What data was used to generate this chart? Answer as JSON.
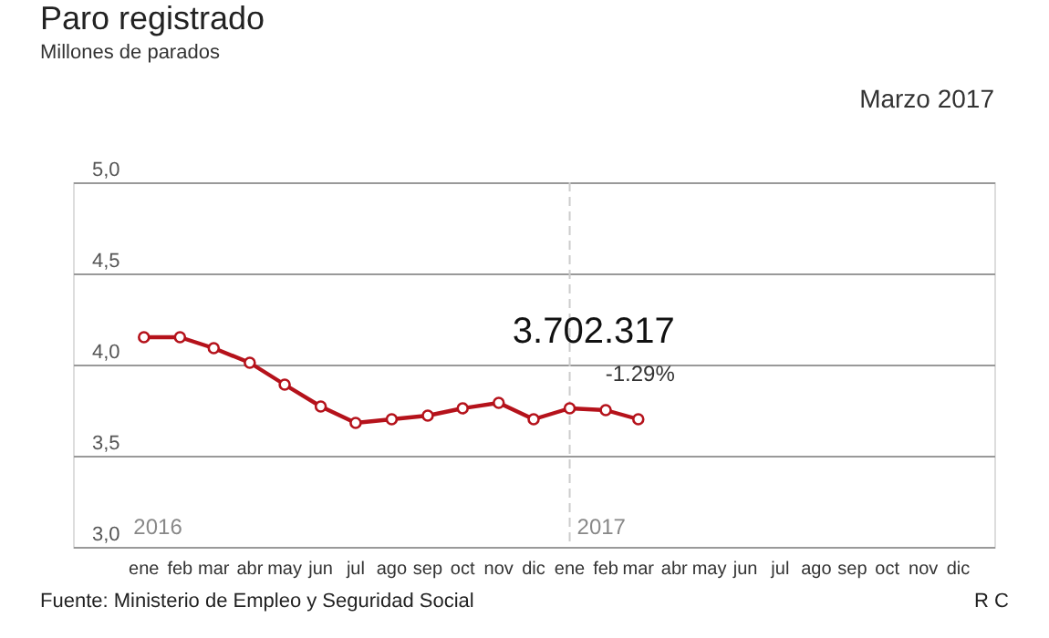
{
  "chart_data": {
    "type": "line",
    "title": "Paro registrado",
    "subtitle": "Millones de parados",
    "x": [
      "2016-01",
      "2016-02",
      "2016-03",
      "2016-04",
      "2016-05",
      "2016-06",
      "2016-07",
      "2016-08",
      "2016-09",
      "2016-10",
      "2016-11",
      "2016-12",
      "2017-01",
      "2017-02",
      "2017-03"
    ],
    "series": [
      {
        "color": "#b5121b",
        "values": [
          4.15,
          4.15,
          4.09,
          4.01,
          3.89,
          3.77,
          3.68,
          3.7,
          3.72,
          3.76,
          3.79,
          3.7,
          3.76,
          3.75,
          3.7
        ]
      }
    ],
    "xlim": [
      "2015-11-01",
      "2018-01-01"
    ],
    "xticks": [
      {
        "value": "2016-01",
        "label": "ene"
      },
      {
        "value": "2016-02",
        "label": "feb"
      },
      {
        "value": "2016-03",
        "label": "mar"
      },
      {
        "value": "2016-04",
        "label": "abr"
      },
      {
        "value": "2016-05",
        "label": "may"
      },
      {
        "value": "2016-06",
        "label": "jun"
      },
      {
        "value": "2016-07",
        "label": "jul"
      },
      {
        "value": "2016-08",
        "label": "ago"
      },
      {
        "value": "2016-09",
        "label": "sep"
      },
      {
        "value": "2016-10",
        "label": "oct"
      },
      {
        "value": "2016-11",
        "label": "nov"
      },
      {
        "value": "2016-12",
        "label": "dic"
      },
      {
        "value": "2017-01",
        "label": "ene"
      },
      {
        "value": "2017-02",
        "label": "feb"
      },
      {
        "value": "2017-03",
        "label": "mar"
      },
      {
        "value": "2017-04",
        "label": "abr"
      },
      {
        "value": "2017-05",
        "label": "may"
      },
      {
        "value": "2017-06",
        "label": "jun"
      },
      {
        "value": "2017-07",
        "label": "jul"
      },
      {
        "value": "2017-08",
        "label": "ago"
      },
      {
        "value": "2017-09",
        "label": "sep"
      },
      {
        "value": "2017-10",
        "label": "oct"
      },
      {
        "value": "2017-11",
        "label": "nov"
      },
      {
        "value": "2017-12",
        "label": "dic"
      }
    ],
    "ylim": [
      3.0,
      5.0
    ],
    "yticks": [
      {
        "value": 3.0,
        "label": "3,0"
      },
      {
        "value": 3.5,
        "label": "3,5"
      },
      {
        "value": 4.0,
        "label": "4,0"
      },
      {
        "value": 4.5,
        "label": "4,5"
      },
      {
        "value": 5.0,
        "label": "5,0"
      }
    ],
    "ref_lines": [
      {
        "axis": "x",
        "value": "2017-01",
        "label": "2017",
        "color": "#cccccc",
        "line_style": "dashed"
      }
    ],
    "annotations": [
      "Marzo 2017",
      "2016",
      {
        "text": "3.702.317",
        "x": "2017-03",
        "y": 3.7
      },
      {
        "text": "-1.29%",
        "x": "2017-03",
        "y": 3.7
      },
      "Fuente: Ministerio de Empleo y Seguridad Social",
      "R C"
    ],
    "grid": "y",
    "marker": "circle",
    "line_style": "solid"
  }
}
